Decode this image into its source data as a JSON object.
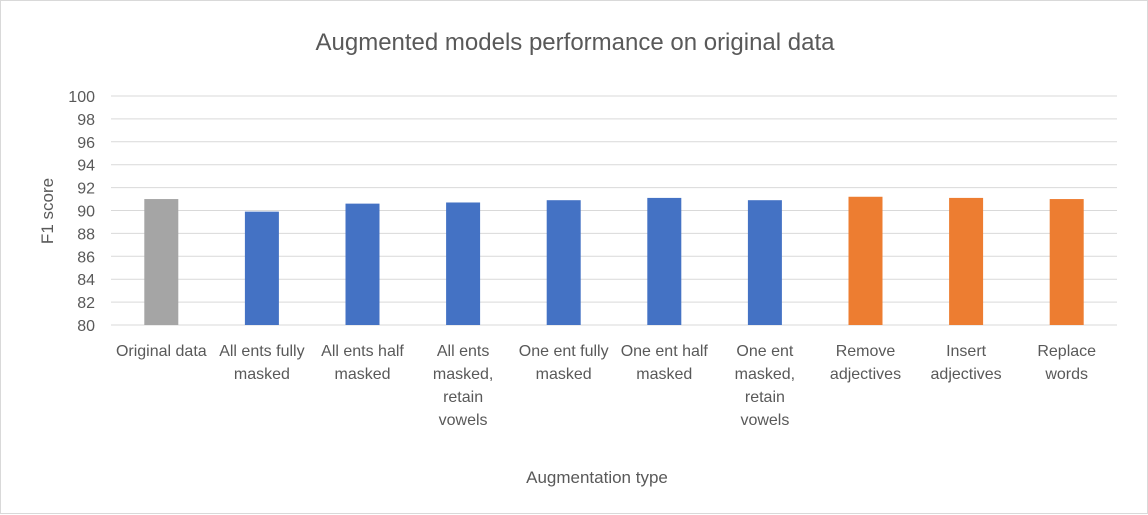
{
  "chart_data": {
    "type": "bar",
    "title": "Augmented models performance on original data",
    "xlabel": "Augmentation type",
    "ylabel": "F1 score",
    "ylim": [
      80,
      100
    ],
    "ytick_step": 2,
    "grid": true,
    "legend": "none",
    "categories": [
      [
        "Original data"
      ],
      [
        "All ents fully",
        "masked"
      ],
      [
        "All ents half",
        "masked"
      ],
      [
        "All ents",
        "masked,",
        "retain",
        "vowels"
      ],
      [
        "One ent fully",
        "masked"
      ],
      [
        "One ent half",
        "masked"
      ],
      [
        "One ent",
        "masked,",
        "retain",
        "vowels"
      ],
      [
        "Remove",
        "adjectives"
      ],
      [
        "Insert",
        "adjectives"
      ],
      [
        "Replace",
        "words"
      ]
    ],
    "values": [
      91.0,
      89.9,
      90.6,
      90.7,
      90.9,
      91.1,
      90.9,
      91.2,
      91.1,
      91.0
    ],
    "bar_colors": [
      "#a5a5a5",
      "#4472c4",
      "#4472c4",
      "#4472c4",
      "#4472c4",
      "#4472c4",
      "#4472c4",
      "#ed7d31",
      "#ed7d31",
      "#ed7d31"
    ]
  }
}
